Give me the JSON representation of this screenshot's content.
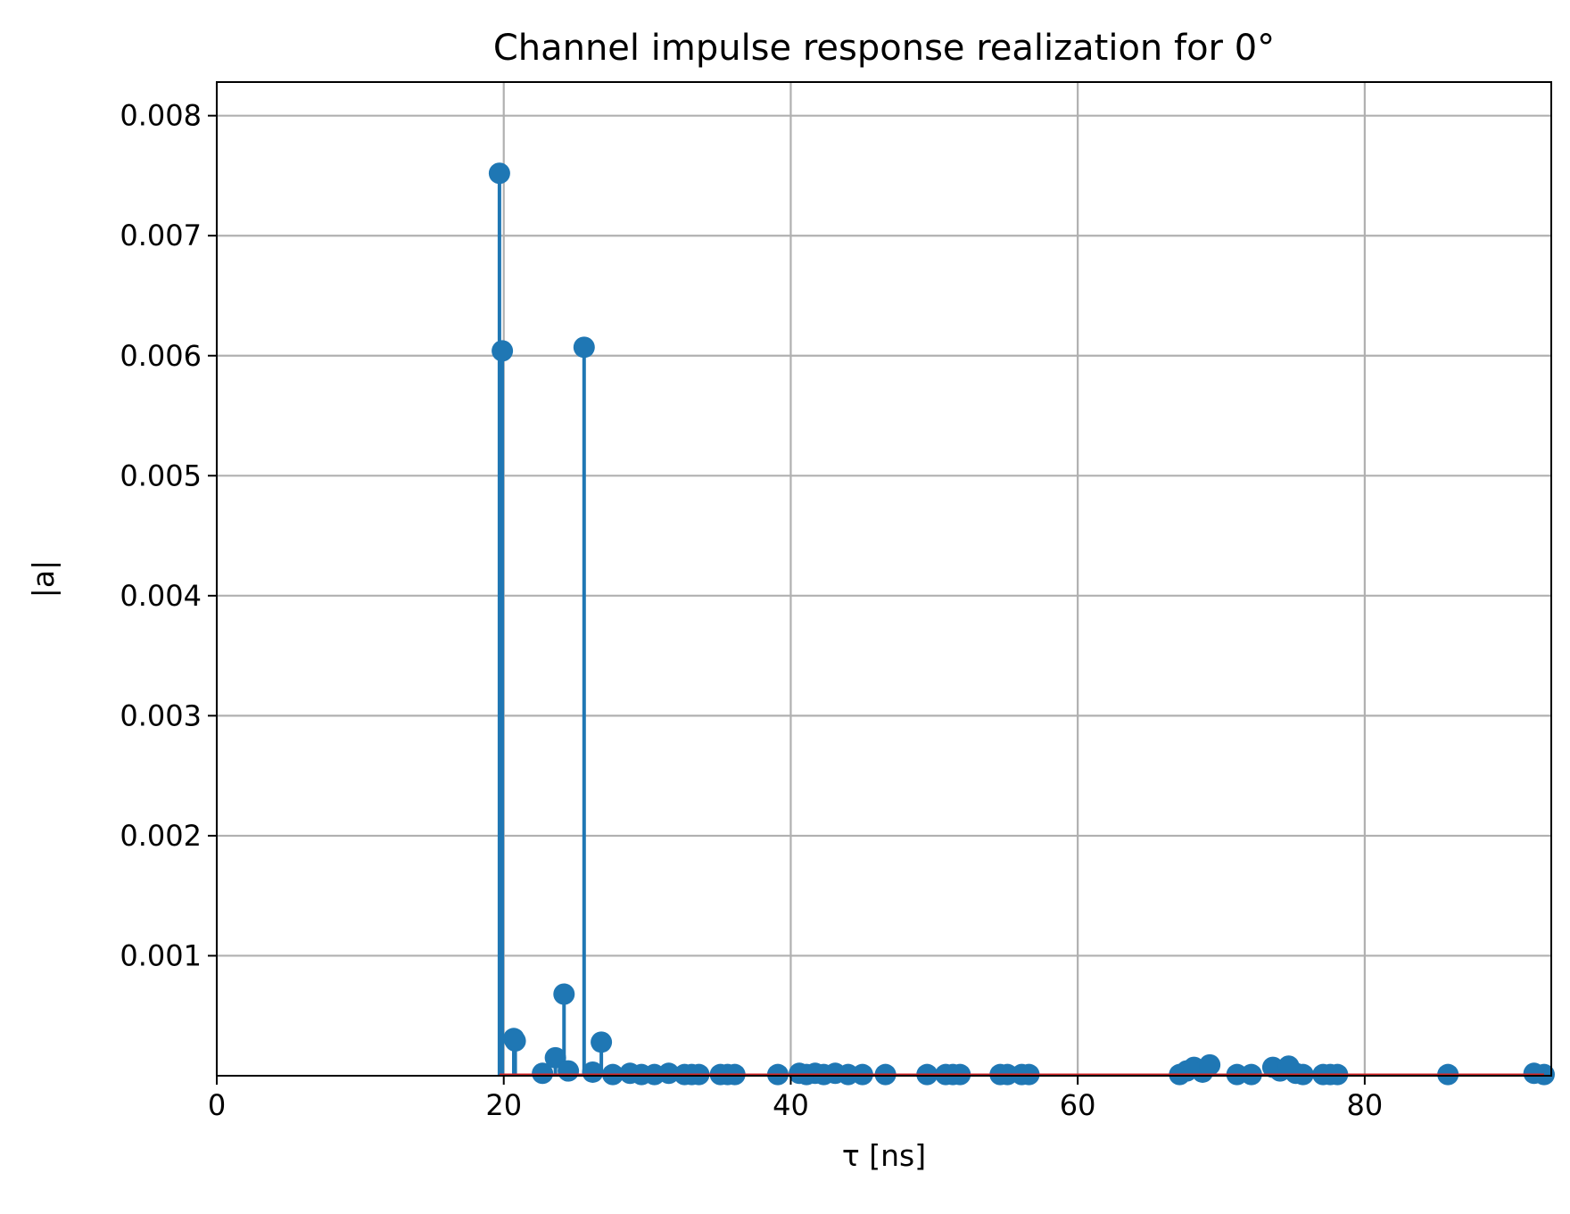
{
  "chart_data": {
    "type": "stem",
    "title": "Channel impulse response realization for 0°",
    "xlabel": "τ [ns]",
    "ylabel": "|a|",
    "xlim": [
      0,
      93
    ],
    "ylim": [
      0,
      0.00828
    ],
    "xticks": [
      0,
      20,
      40,
      60,
      80
    ],
    "yticks": [
      0.001,
      0.002,
      0.003,
      0.004,
      0.005,
      0.006,
      0.007,
      0.008
    ],
    "xtick_labels": [
      "0",
      "20",
      "40",
      "60",
      "80"
    ],
    "ytick_labels": [
      "0.001",
      "0.002",
      "0.003",
      "0.004",
      "0.005",
      "0.006",
      "0.007",
      "0.008"
    ],
    "grid": true,
    "colors": {
      "stem": "#1f77b4",
      "baseline": "#d62728",
      "grid": "#b0b0b0"
    },
    "series": [
      {
        "x": [
          19.7,
          19.9,
          20.7,
          20.8,
          22.7,
          23.6,
          24.2,
          24.5,
          25.6,
          26.8,
          26.2,
          27.6,
          28.8,
          29.6,
          30.5,
          31.5,
          32.6,
          33.1,
          33.6,
          35.1,
          35.6,
          36.1,
          39.1,
          40.6,
          41.1,
          41.7,
          42.3,
          43.1,
          44.0,
          45.0,
          46.6,
          49.5,
          50.8,
          51.3,
          51.8,
          54.6,
          55.1,
          56.1,
          56.6,
          67.1,
          67.6,
          68.1,
          68.7,
          69.2,
          71.1,
          72.1,
          73.6,
          74.1,
          74.7,
          75.2,
          75.7,
          77.1,
          77.6,
          78.1,
          85.8,
          91.8,
          92.5
        ],
        "y": [
          0.00752,
          0.00604,
          0.00031,
          0.00029,
          2e-05,
          0.00015,
          0.00068,
          4e-05,
          0.00607,
          0.00028,
          3e-05,
          1e-05,
          2e-05,
          1e-05,
          1e-05,
          2e-05,
          1e-05,
          1e-05,
          1e-05,
          1e-05,
          1e-05,
          1e-05,
          1e-05,
          2e-05,
          1e-05,
          2e-05,
          1e-05,
          2e-05,
          1e-05,
          1e-05,
          1e-05,
          1e-05,
          1e-05,
          1e-05,
          1e-05,
          1e-05,
          1e-05,
          1e-05,
          1e-05,
          1e-05,
          4e-05,
          7e-05,
          3e-05,
          9e-05,
          1e-05,
          1e-05,
          7e-05,
          4e-05,
          8e-05,
          2e-05,
          1e-05,
          1e-05,
          1e-05,
          1e-05,
          1e-05,
          2e-05,
          1e-05
        ]
      }
    ]
  }
}
